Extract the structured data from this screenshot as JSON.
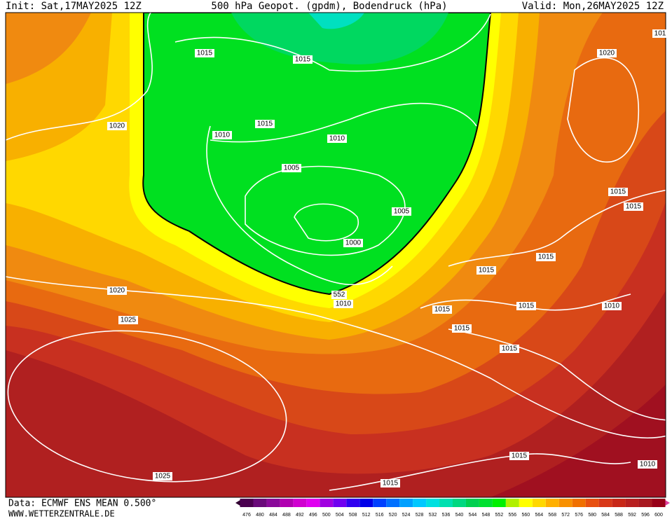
{
  "header": {
    "init": "Init: Sat,17MAY2025 12Z",
    "title": "500 hPa Geopot. (gpdm), Bodendruck (hPa)",
    "valid": "Valid: Mon,26MAY2025 12Z"
  },
  "footer": {
    "data": "Data: ECMWF ENS MEAN 0.500°",
    "site": "WWW.WETTERZENTRALE.DE"
  },
  "isobar_labels": [
    "1015",
    "1015",
    "1015",
    "1010",
    "1020",
    "1020",
    "1010",
    "1005",
    "1005",
    "1000",
    "552",
    "1010",
    "1020",
    "1025",
    "1025",
    "1015",
    "1015",
    "1015",
    "1015",
    "1015",
    "1015",
    "1015",
    "1015",
    "1010",
    "1015",
    "1015",
    "1010",
    "101"
  ],
  "colorbar": {
    "labels": [
      476,
      480,
      484,
      488,
      492,
      496,
      500,
      504,
      508,
      512,
      516,
      520,
      524,
      528,
      532,
      536,
      540,
      544,
      548,
      552,
      556,
      560,
      564,
      568,
      572,
      576,
      580,
      584,
      588,
      592,
      596,
      600
    ],
    "colors": [
      "#4b0050",
      "#6a0a7a",
      "#8a0a9a",
      "#b000b0",
      "#d000d0",
      "#e000f0",
      "#a000e0",
      "#7000f0",
      "#3000f0",
      "#0000e8",
      "#0040ff",
      "#0070ff",
      "#00a0ff",
      "#00c8ff",
      "#00e0e0",
      "#00e0b0",
      "#00d880",
      "#00d050",
      "#00e030",
      "#00f000",
      "#b0f000",
      "#ffff00",
      "#ffd800",
      "#ffb000",
      "#f89000",
      "#f07000",
      "#e85010",
      "#d83818",
      "#c82818",
      "#b82020",
      "#a81820",
      "#980018"
    ]
  }
}
